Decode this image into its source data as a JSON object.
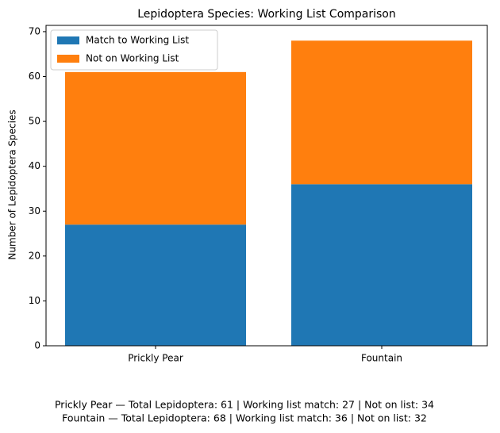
{
  "chart_data": {
    "type": "stacked_bar",
    "title": "Lepidoptera Species: Working List Comparison",
    "y_label": "Number of Lepidoptera Species",
    "categories": [
      "Prickly Pear",
      "Fountain"
    ],
    "series": [
      {
        "name": "Match to Working List",
        "color": "#1f77b4",
        "values": [
          27,
          36
        ]
      },
      {
        "name": "Not on Working List",
        "color": "#ff7f0e",
        "values": [
          34,
          32
        ]
      }
    ],
    "ylim": [
      0,
      71.4
    ],
    "yticks": [
      0,
      10,
      20,
      30,
      40,
      50,
      60,
      70
    ],
    "legend": "upper-left",
    "footer": [
      "Prickly Pear — Total Lepidoptera: 61 | Working list match: 27 | Not on list: 34",
      "Fountain — Total Lepidoptera: 68 | Working list match: 36 | Not on list: 32"
    ]
  }
}
